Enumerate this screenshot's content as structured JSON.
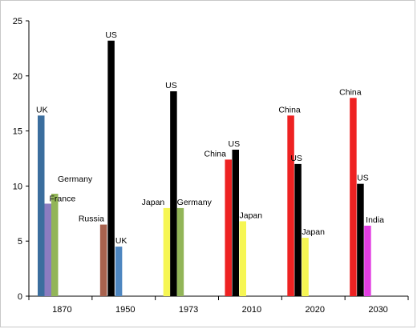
{
  "chart_data": {
    "type": "bar",
    "categories": [
      "1870",
      "1950",
      "1973",
      "2010",
      "2020",
      "2030"
    ],
    "ylim": [
      0,
      25
    ],
    "yticks": [
      0,
      5,
      10,
      15,
      20,
      25
    ],
    "grid": false,
    "legend": "none",
    "title": "",
    "xlabel": "",
    "ylabel": "",
    "groups": [
      {
        "category": "1870",
        "bars": [
          {
            "country": "UK",
            "value": 16.4,
            "color": "#3b6e9e"
          },
          {
            "country": "France",
            "value": 8.4,
            "color": "#8b7cc0"
          },
          {
            "country": "Germany",
            "value": 9.3,
            "color": "#92b558"
          }
        ]
      },
      {
        "category": "1950",
        "bars": [
          {
            "country": "Russia",
            "value": 6.5,
            "color": "#a8624e"
          },
          {
            "country": "US",
            "value": 23.2,
            "color": "#000000"
          },
          {
            "country": "UK",
            "value": 4.5,
            "color": "#4e86c0"
          }
        ]
      },
      {
        "category": "1973",
        "bars": [
          {
            "country": "Japan",
            "value": 8.0,
            "color": "#f6f653"
          },
          {
            "country": "US",
            "value": 18.6,
            "color": "#000000"
          },
          {
            "country": "Germany",
            "value": 8.0,
            "color": "#92b558"
          }
        ]
      },
      {
        "category": "2010",
        "bars": [
          {
            "country": "China",
            "value": 12.4,
            "color": "#ee2222"
          },
          {
            "country": "US",
            "value": 13.3,
            "color": "#000000"
          },
          {
            "country": "Japan",
            "value": 6.8,
            "color": "#f6f653"
          }
        ]
      },
      {
        "category": "2020",
        "bars": [
          {
            "country": "China",
            "value": 16.4,
            "color": "#ee2222"
          },
          {
            "country": "US",
            "value": 12.0,
            "color": "#000000"
          },
          {
            "country": "Japan",
            "value": 5.3,
            "color": "#f6f653"
          }
        ]
      },
      {
        "category": "2030",
        "bars": [
          {
            "country": "China",
            "value": 18.0,
            "color": "#ee2222"
          },
          {
            "country": "US",
            "value": 10.2,
            "color": "#000000"
          },
          {
            "country": "India",
            "value": 6.4,
            "color": "#e23ee2"
          }
        ]
      }
    ]
  }
}
